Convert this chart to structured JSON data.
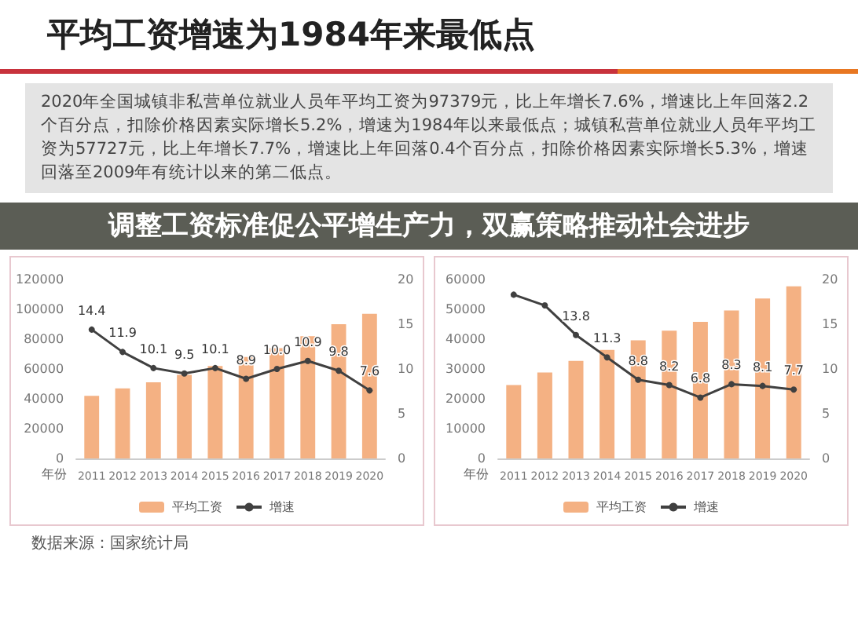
{
  "chart_data": [
    {
      "type": "bar",
      "title": "平均工资增速为1984年来最低点",
      "annotations": [
        "2020年全国城镇非私营单位就业人员年平均工资为97379元，比上年增长7.6%，增速比上年回落2.2个百分点，扣除价格因素实际增长5.2%，增速为1984年以来最低点；城镇私营单位就业人员年平均工资为57727元，比上年增长7.7%，增速比上年回落0.4个百分点，扣除价格因素实际增长5.3%，增速回落至2009年有统计以来的第二低点。",
        "调整工资标准促公平增生产力，双赢策略推动社会进步",
        "数据来源：国家统计局"
      ],
      "categories": [
        "2011",
        "2012",
        "2013",
        "2014",
        "2015",
        "2016",
        "2017",
        "2018",
        "2019",
        "2020"
      ],
      "xlabel": "年份",
      "series": [
        {
          "name": "平均工资",
          "color": "#f4b183",
          "values": [
            42000,
            47000,
            51000,
            56000,
            62000,
            68000,
            74000,
            82000,
            90000,
            97000
          ]
        },
        {
          "name": "增速",
          "type": "line",
          "axis": "y2",
          "color": "#404040",
          "values": [
            14.4,
            11.9,
            10.1,
            9.5,
            10.1,
            8.9,
            10.0,
            10.9,
            9.8,
            7.6
          ],
          "value_labels": [
            "14.4",
            "11.9",
            "10.1",
            "9.5",
            "10.1",
            "8.9",
            "10.0",
            "10.9",
            "9.8",
            "7.6"
          ]
        }
      ],
      "ylim": [
        0,
        120000
      ],
      "yticks": [
        0,
        20000,
        40000,
        60000,
        80000,
        100000,
        120000
      ],
      "y2lim": [
        0,
        20
      ],
      "y2ticks": [
        0,
        5,
        10,
        15,
        20
      ],
      "legend": "bottom",
      "marker": "circle",
      "grid": false
    },
    {
      "type": "bar",
      "categories": [
        "2011",
        "2012",
        "2013",
        "2014",
        "2015",
        "2016",
        "2017",
        "2018",
        "2019",
        "2020"
      ],
      "xlabel": "年份",
      "series": [
        {
          "name": "平均工资",
          "color": "#f4b183",
          "values": [
            24600,
            28800,
            32700,
            36400,
            39600,
            42800,
            45800,
            49600,
            53600,
            57700
          ]
        },
        {
          "name": "增速",
          "type": "line",
          "axis": "y2",
          "color": "#404040",
          "values": [
            18.3,
            17.1,
            13.8,
            11.3,
            8.8,
            8.2,
            6.8,
            8.3,
            8.1,
            7.7
          ],
          "value_labels": [
            null,
            null,
            "13.8",
            "11.3",
            "8.8",
            "8.2",
            "6.8",
            "8.3",
            "8.1",
            "7.7"
          ]
        }
      ],
      "ylim": [
        0,
        60000
      ],
      "yticks": [
        0,
        10000,
        20000,
        30000,
        40000,
        50000,
        60000
      ],
      "y2lim": [
        0,
        20
      ],
      "y2ticks": [
        0,
        5,
        10,
        15,
        20
      ],
      "legend": "bottom",
      "marker": "circle",
      "grid": false
    }
  ]
}
